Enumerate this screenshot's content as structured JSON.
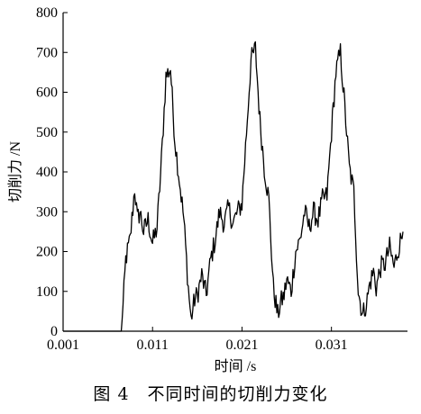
{
  "caption": "图 4　不同时间的切削力变化",
  "chart_data": {
    "type": "line",
    "title": "",
    "xlabel": "时间 /s",
    "ylabel": "切削力 /N",
    "xlim": [
      0.001,
      0.0395
    ],
    "ylim": [
      0,
      800
    ],
    "x_ticks": [
      0.001,
      0.011,
      0.021,
      0.031
    ],
    "x_tick_labels": [
      "0.001",
      "0.011",
      "0.021",
      "0.031"
    ],
    "y_ticks": [
      0,
      100,
      200,
      300,
      400,
      500,
      600,
      700,
      800
    ],
    "y_tick_labels": [
      "0",
      "100",
      "200",
      "300",
      "400",
      "500",
      "600",
      "700",
      "800"
    ],
    "grid": false,
    "legend": "none",
    "line_color": "#000000",
    "series": [
      {
        "x": [
          0.001,
          0.0075,
          0.0077,
          0.008,
          0.0085,
          0.009,
          0.0093,
          0.0096,
          0.01,
          0.0105,
          0.011,
          0.0115,
          0.012,
          0.0125,
          0.013,
          0.0135,
          0.014,
          0.0145,
          0.015,
          0.0153,
          0.0157,
          0.016,
          0.0165,
          0.017,
          0.0175,
          0.018,
          0.0185,
          0.019,
          0.0195,
          0.02,
          0.0205,
          0.021,
          0.0215,
          0.022,
          0.0225,
          0.023,
          0.0235,
          0.024,
          0.0245,
          0.025,
          0.0253,
          0.0257,
          0.026,
          0.0265,
          0.027,
          0.0275,
          0.028,
          0.0285,
          0.029,
          0.0295,
          0.03,
          0.0305,
          0.031,
          0.0315,
          0.032,
          0.0325,
          0.033,
          0.0335,
          0.034,
          0.0345,
          0.035,
          0.0353,
          0.0357,
          0.036,
          0.0365,
          0.037,
          0.0375,
          0.038,
          0.0385,
          0.039
        ],
        "y": [
          0,
          0,
          60,
          180,
          230,
          360,
          280,
          300,
          250,
          280,
          220,
          260,
          430,
          640,
          660,
          480,
          380,
          280,
          110,
          30,
          80,
          90,
          140,
          90,
          180,
          230,
          300,
          270,
          310,
          270,
          300,
          320,
          500,
          680,
          710,
          530,
          410,
          330,
          110,
          40,
          70,
          90,
          130,
          100,
          200,
          230,
          300,
          260,
          300,
          280,
          330,
          340,
          500,
          650,
          700,
          560,
          410,
          350,
          100,
          40,
          80,
          120,
          150,
          110,
          160,
          170,
          210,
          160,
          210,
          250
        ]
      }
    ]
  }
}
